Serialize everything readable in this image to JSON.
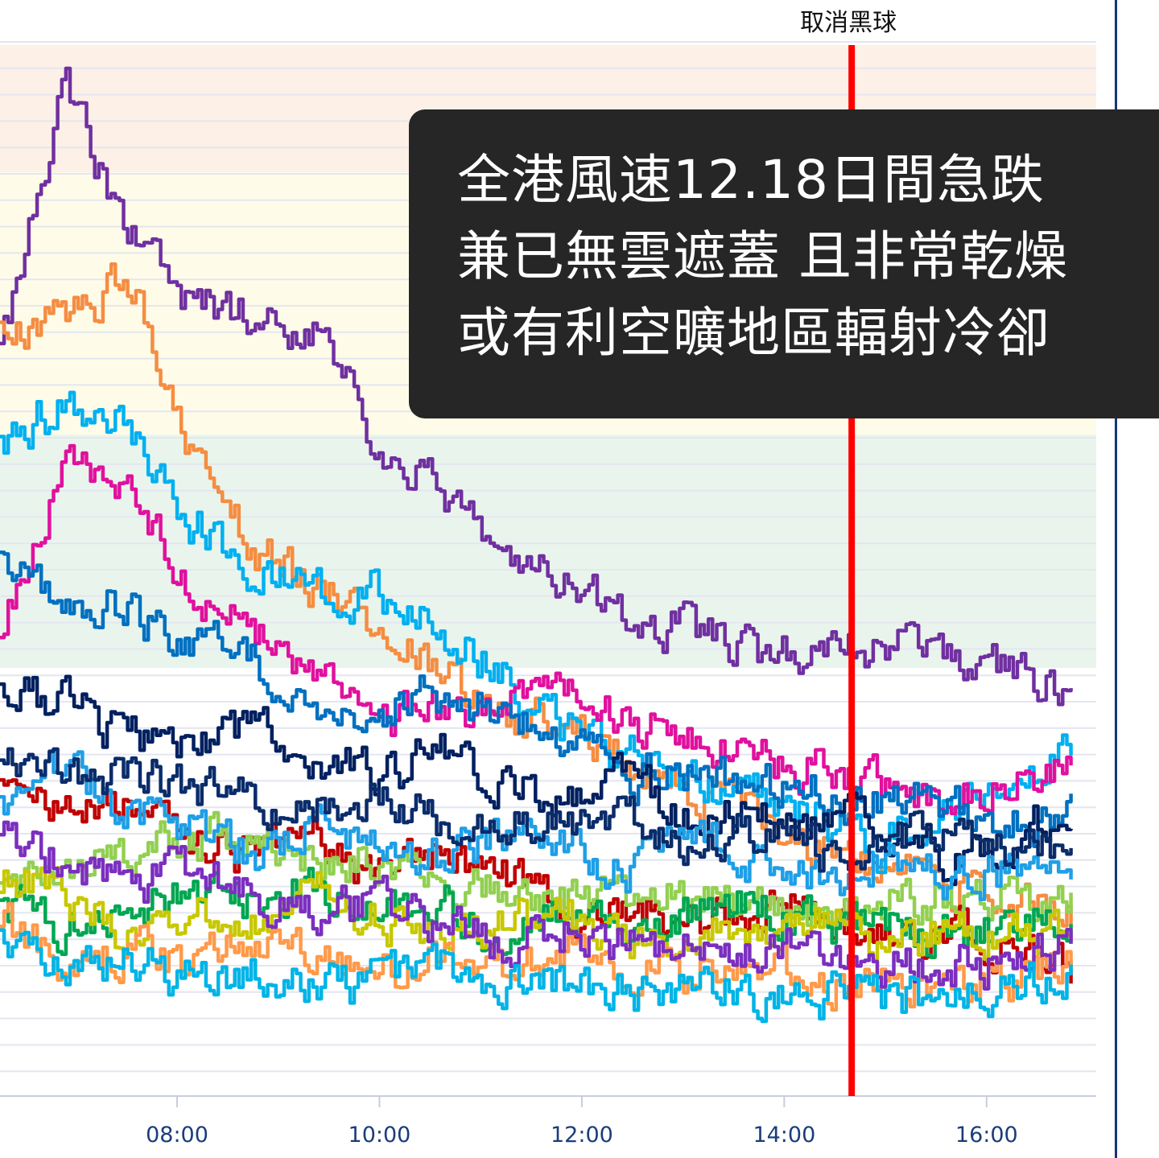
{
  "chart_data": {
    "type": "line",
    "title": "",
    "xlabel": "",
    "ylabel": "",
    "x_ticks": [
      "08:00",
      "10:00",
      "12:00",
      "14:00",
      "16:00"
    ],
    "x_range": [
      "06:15",
      "17:05"
    ],
    "data_end": "16:50",
    "grid": true,
    "legend": "none",
    "marker": {
      "time": "14:40",
      "label": "取消黑球",
      "color": "#ff0000"
    },
    "bands": [
      {
        "name": "upper",
        "color": "#fdf0e6"
      },
      {
        "name": "middle",
        "color": "#fefce8"
      },
      {
        "name": "lower",
        "color": "#e9f5ec"
      }
    ],
    "series": [
      {
        "color": "#7030a0",
        "values": [
          0.7,
          0.96,
          0.82,
          0.75,
          0.74,
          0.73,
          0.62,
          0.58,
          0.5,
          0.49,
          0.45,
          0.44,
          0.42,
          0.42,
          0.43,
          0.42,
          0.4,
          0.39
        ]
      },
      {
        "color": "#f58d42",
        "values": [
          0.74,
          0.73,
          0.78,
          0.62,
          0.52,
          0.48,
          0.45,
          0.4,
          0.35,
          0.36,
          0.31,
          0.29,
          0.27,
          0.24,
          0.22,
          0.2,
          0.19,
          0.17
        ]
      },
      {
        "color": "#00b0f0",
        "values": [
          0.62,
          0.66,
          0.64,
          0.55,
          0.5,
          0.47,
          0.48,
          0.44,
          0.4,
          0.34,
          0.32,
          0.3,
          0.28,
          0.26,
          0.24,
          0.27,
          0.3,
          0.33
        ]
      },
      {
        "color": "#e0119e",
        "values": [
          0.45,
          0.6,
          0.58,
          0.48,
          0.44,
          0.4,
          0.36,
          0.36,
          0.37,
          0.38,
          0.35,
          0.34,
          0.32,
          0.31,
          0.3,
          0.28,
          0.3,
          0.31
        ]
      },
      {
        "color": "#0070c0",
        "values": [
          0.5,
          0.48,
          0.46,
          0.43,
          0.41,
          0.38,
          0.37,
          0.38,
          0.36,
          0.34,
          0.3,
          0.31,
          0.29,
          0.29,
          0.28,
          0.27,
          0.26,
          0.27
        ]
      },
      {
        "color": "#002060",
        "values": [
          0.38,
          0.37,
          0.34,
          0.33,
          0.35,
          0.32,
          0.3,
          0.33,
          0.3,
          0.28,
          0.3,
          0.26,
          0.27,
          0.25,
          0.26,
          0.23,
          0.24,
          0.28
        ]
      },
      {
        "color": "#c00000",
        "values": [
          0.3,
          0.26,
          0.28,
          0.24,
          0.22,
          0.25,
          0.2,
          0.23,
          0.21,
          0.18,
          0.17,
          0.17,
          0.18,
          0.17,
          0.16,
          0.16,
          0.14,
          0.12
        ]
      },
      {
        "color": "#92d050",
        "values": [
          0.2,
          0.21,
          0.23,
          0.24,
          0.25,
          0.22,
          0.23,
          0.2,
          0.2,
          0.19,
          0.18,
          0.2,
          0.18,
          0.17,
          0.18,
          0.19,
          0.18,
          0.2
        ]
      },
      {
        "color": "#00a651",
        "values": [
          0.18,
          0.16,
          0.17,
          0.2,
          0.19,
          0.2,
          0.17,
          0.18,
          0.16,
          0.18,
          0.16,
          0.17,
          0.19,
          0.16,
          0.17,
          0.15,
          0.16,
          0.18
        ]
      },
      {
        "color": "#c8c800",
        "values": [
          0.21,
          0.19,
          0.15,
          0.18,
          0.16,
          0.19,
          0.17,
          0.15,
          0.16,
          0.17,
          0.15,
          0.16,
          0.15,
          0.17,
          0.14,
          0.16,
          0.15,
          0.16
        ]
      },
      {
        "color": "#1e9fe6",
        "values": [
          0.28,
          0.31,
          0.27,
          0.25,
          0.23,
          0.26,
          0.24,
          0.22,
          0.25,
          0.23,
          0.21,
          0.24,
          0.22,
          0.2,
          0.23,
          0.21,
          0.22,
          0.23
        ]
      },
      {
        "color": "#ff9a4a",
        "values": [
          0.16,
          0.13,
          0.14,
          0.12,
          0.15,
          0.13,
          0.12,
          0.14,
          0.12,
          0.13,
          0.12,
          0.12,
          0.13,
          0.11,
          0.12,
          0.11,
          0.11,
          0.12
        ]
      },
      {
        "color": "#7b2fbf",
        "values": [
          0.24,
          0.22,
          0.2,
          0.21,
          0.19,
          0.17,
          0.18,
          0.16,
          0.15,
          0.16,
          0.14,
          0.15,
          0.13,
          0.14,
          0.13,
          0.12,
          0.13,
          0.14
        ]
      },
      {
        "color": "#0a2c6b",
        "values": [
          0.33,
          0.3,
          0.31,
          0.29,
          0.28,
          0.27,
          0.29,
          0.26,
          0.27,
          0.25,
          0.26,
          0.24,
          0.25,
          0.23,
          0.24,
          0.25,
          0.23,
          0.24
        ]
      },
      {
        "color": "#00b4e6",
        "values": [
          0.14,
          0.12,
          0.13,
          0.11,
          0.12,
          0.1,
          0.11,
          0.12,
          0.1,
          0.11,
          0.1,
          0.11,
          0.1,
          0.09,
          0.1,
          0.09,
          0.1,
          0.11
        ]
      }
    ]
  },
  "caption": {
    "lines": [
      "全港風速12.18日間急跌",
      "兼已無雲遮蓋 且非常乾燥",
      "或有利空曠地區輻射冷卻"
    ]
  }
}
